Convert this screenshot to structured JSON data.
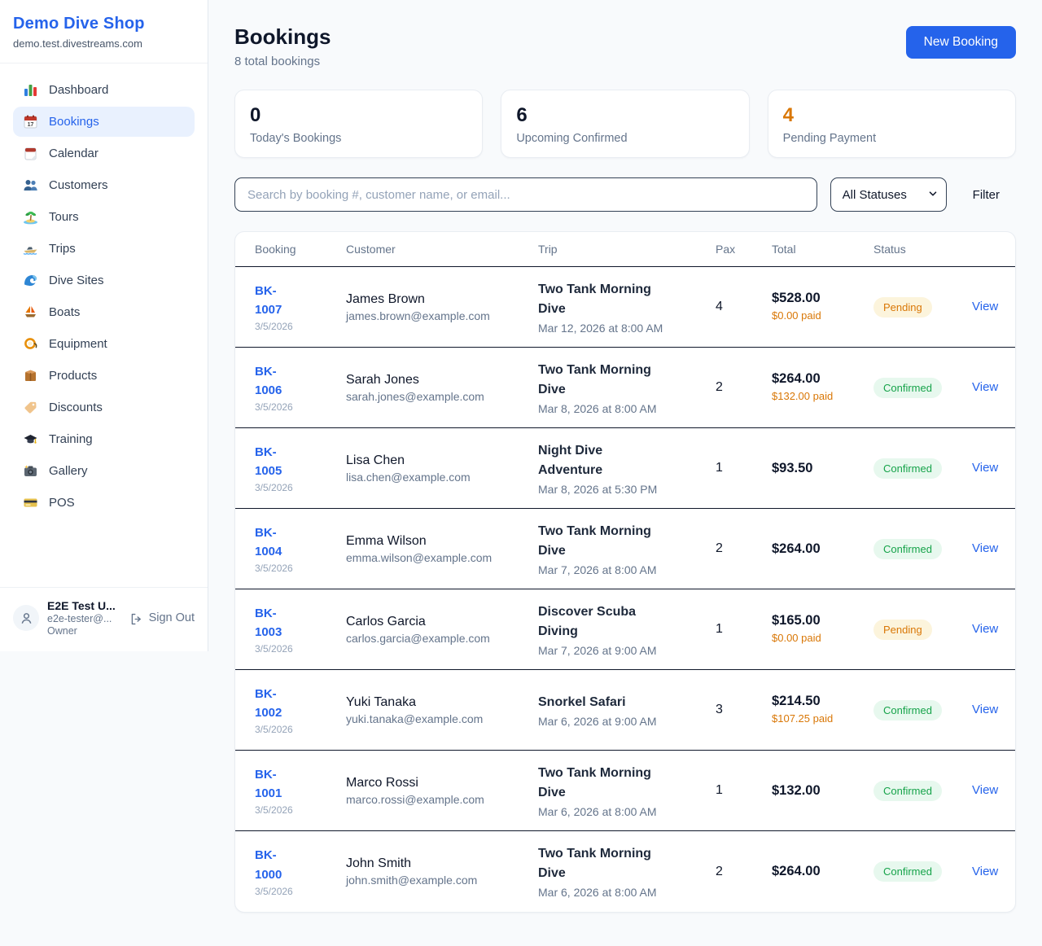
{
  "sidebar": {
    "brand": {
      "name": "Demo Dive Shop",
      "domain": "demo.test.divestreams.com"
    },
    "nav": [
      {
        "label": "Dashboard",
        "icon": "dashboard-icon",
        "active": false
      },
      {
        "label": "Bookings",
        "icon": "bookings-icon",
        "active": true
      },
      {
        "label": "Calendar",
        "icon": "calendar-icon",
        "active": false
      },
      {
        "label": "Customers",
        "icon": "customers-icon",
        "active": false
      },
      {
        "label": "Tours",
        "icon": "tours-icon",
        "active": false
      },
      {
        "label": "Trips",
        "icon": "trips-icon",
        "active": false
      },
      {
        "label": "Dive Sites",
        "icon": "dive-sites-icon",
        "active": false
      },
      {
        "label": "Boats",
        "icon": "boats-icon",
        "active": false
      },
      {
        "label": "Equipment",
        "icon": "equipment-icon",
        "active": false
      },
      {
        "label": "Products",
        "icon": "products-icon",
        "active": false
      },
      {
        "label": "Discounts",
        "icon": "discounts-icon",
        "active": false
      },
      {
        "label": "Training",
        "icon": "training-icon",
        "active": false
      },
      {
        "label": "Gallery",
        "icon": "gallery-icon",
        "active": false
      },
      {
        "label": "POS",
        "icon": "pos-icon",
        "active": false
      }
    ],
    "user": {
      "name": "E2E Test U...",
      "email": "e2e-tester@...",
      "role": "Owner",
      "sign_out_label": "Sign Out"
    }
  },
  "header": {
    "title": "Bookings",
    "subtitle": "8 total bookings",
    "new_booking_label": "New Booking"
  },
  "stats": [
    {
      "value": "0",
      "label": "Today's Bookings",
      "value_color": "#0f172a"
    },
    {
      "value": "6",
      "label": "Upcoming Confirmed",
      "value_color": "#0f172a"
    },
    {
      "value": "4",
      "label": "Pending Payment",
      "value_color": "#d97706"
    }
  ],
  "filters": {
    "search_placeholder": "Search by booking #, customer name, or email...",
    "status_selected": "All Statuses",
    "filter_label": "Filter"
  },
  "table": {
    "columns": [
      "Booking",
      "Customer",
      "Trip",
      "Pax",
      "Total",
      "Status"
    ],
    "view_label": "View",
    "rows": [
      {
        "id": "BK-1007",
        "date": "3/5/2026",
        "customer": "James Brown",
        "email": "james.brown@example.com",
        "trip": "Two Tank Morning Dive",
        "trip_datetime": "Mar 12, 2026 at 8:00 AM",
        "pax": "4",
        "total": "$528.00",
        "paid": "$0.00 paid",
        "status": "Pending"
      },
      {
        "id": "BK-1006",
        "date": "3/5/2026",
        "customer": "Sarah Jones",
        "email": "sarah.jones@example.com",
        "trip": "Two Tank Morning Dive",
        "trip_datetime": "Mar 8, 2026 at 8:00 AM",
        "pax": "2",
        "total": "$264.00",
        "paid": "$132.00 paid",
        "status": "Confirmed"
      },
      {
        "id": "BK-1005",
        "date": "3/5/2026",
        "customer": "Lisa Chen",
        "email": "lisa.chen@example.com",
        "trip": "Night Dive Adventure",
        "trip_datetime": "Mar 8, 2026 at 5:30 PM",
        "pax": "1",
        "total": "$93.50",
        "paid": null,
        "status": "Confirmed"
      },
      {
        "id": "BK-1004",
        "date": "3/5/2026",
        "customer": "Emma Wilson",
        "email": "emma.wilson@example.com",
        "trip": "Two Tank Morning Dive",
        "trip_datetime": "Mar 7, 2026 at 8:00 AM",
        "pax": "2",
        "total": "$264.00",
        "paid": null,
        "status": "Confirmed"
      },
      {
        "id": "BK-1003",
        "date": "3/5/2026",
        "customer": "Carlos Garcia",
        "email": "carlos.garcia@example.com",
        "trip": "Discover Scuba Diving",
        "trip_datetime": "Mar 7, 2026 at 9:00 AM",
        "pax": "1",
        "total": "$165.00",
        "paid": "$0.00 paid",
        "status": "Pending"
      },
      {
        "id": "BK-1002",
        "date": "3/5/2026",
        "customer": "Yuki Tanaka",
        "email": "yuki.tanaka@example.com",
        "trip": "Snorkel Safari",
        "trip_datetime": "Mar 6, 2026 at 9:00 AM",
        "pax": "3",
        "total": "$214.50",
        "paid": "$107.25 paid",
        "status": "Confirmed"
      },
      {
        "id": "BK-1001",
        "date": "3/5/2026",
        "customer": "Marco Rossi",
        "email": "marco.rossi@example.com",
        "trip": "Two Tank Morning Dive",
        "trip_datetime": "Mar 6, 2026 at 8:00 AM",
        "pax": "1",
        "total": "$132.00",
        "paid": null,
        "status": "Confirmed"
      },
      {
        "id": "BK-1000",
        "date": "3/5/2026",
        "customer": "John Smith",
        "email": "john.smith@example.com",
        "trip": "Two Tank Morning Dive",
        "trip_datetime": "Mar 6, 2026 at 8:00 AM",
        "pax": "2",
        "total": "$264.00",
        "paid": null,
        "status": "Confirmed"
      }
    ]
  },
  "colors": {
    "accent_blue": "#2563eb",
    "pending_text": "#d97706",
    "pending_bg": "#fcf4dc",
    "confirmed_text": "#16a34a",
    "confirmed_bg": "#e7f8ee",
    "paid_orange": "#d97706",
    "page_bg": "#f8fafc",
    "row_divider": "#0f172a"
  }
}
